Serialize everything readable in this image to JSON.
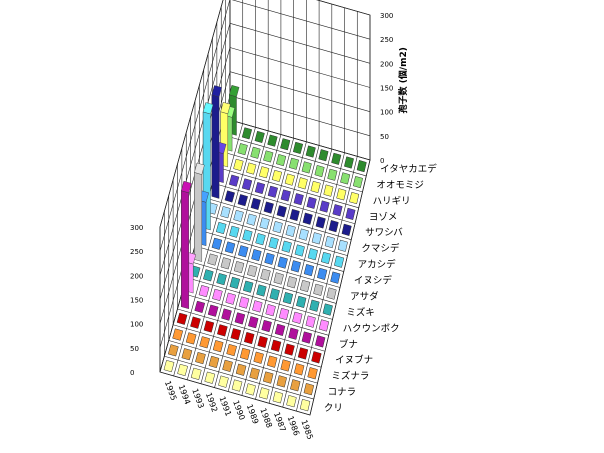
{
  "chart_data": {
    "type": "bar",
    "zlabel": "孢子数 (個/m2)",
    "zlim": [
      0,
      300
    ],
    "z_ticks": [
      "300",
      "250",
      "200",
      "150",
      "100",
      "50",
      "0"
    ],
    "z_ticks_left": [
      "300",
      "250",
      "200",
      "150",
      "100",
      "50",
      "0"
    ],
    "grid": true,
    "legend": "none",
    "years": [
      "1985",
      "1986",
      "1987",
      "1988",
      "1989",
      "1990",
      "1991",
      "1992",
      "1993",
      "1994",
      "1995"
    ],
    "year_tick_labels": [
      "1995",
      "1994",
      "1993",
      "1992",
      "1991",
      "1990",
      "1989",
      "1988",
      "1987",
      "1986",
      "1985"
    ],
    "species": [
      "イタヤカエデ",
      "オオモミジ",
      "ハリギリ",
      "ヨゾメ",
      "サワシバ",
      "クマシデ",
      "アカシデ",
      "イヌシデ",
      "アサダ",
      "ミズキ",
      "ハクウンボク",
      "ブナ",
      "イヌブナ",
      "ミズナラ",
      "コナラ",
      "クリ"
    ],
    "colors": [
      "#2e8b2e",
      "#88e070",
      "#ffff66",
      "#5a3cc8",
      "#1c1c8c",
      "#a8e0ff",
      "#58d8f0",
      "#3c8cf0",
      "#c8c8c8",
      "#30b0b0",
      "#ff8cff",
      "#b0109c",
      "#cc0000",
      "#ff9933",
      "#e8a040",
      "#ffffa0"
    ],
    "values": [
      [
        0,
        0,
        0,
        0,
        0,
        0,
        0,
        0,
        0,
        0,
        80
      ],
      [
        0,
        0,
        0,
        0,
        0,
        0,
        0,
        0,
        0,
        0,
        70
      ],
      [
        0,
        0,
        0,
        0,
        0,
        0,
        0,
        0,
        0,
        0,
        110
      ],
      [
        0,
        0,
        0,
        0,
        0,
        0,
        0,
        0,
        0,
        0,
        60
      ],
      [
        0,
        0,
        0,
        0,
        0,
        0,
        0,
        0,
        0,
        0,
        210
      ],
      [
        0,
        0,
        0,
        0,
        0,
        0,
        0,
        0,
        0,
        0,
        0
      ],
      [
        0,
        0,
        0,
        0,
        0,
        0,
        0,
        0,
        0,
        0,
        240
      ],
      [
        0,
        0,
        0,
        0,
        0,
        0,
        0,
        0,
        0,
        0,
        90
      ],
      [
        0,
        0,
        0,
        0,
        0,
        0,
        0,
        0,
        0,
        0,
        180
      ],
      [
        0,
        0,
        0,
        0,
        0,
        0,
        0,
        0,
        0,
        0,
        0
      ],
      [
        0,
        0,
        0,
        0,
        0,
        0,
        0,
        0,
        0,
        0,
        60
      ],
      [
        0,
        0,
        0,
        0,
        0,
        0,
        0,
        0,
        0,
        0,
        240
      ],
      [
        0,
        0,
        0,
        0,
        0,
        0,
        0,
        0,
        0,
        0,
        0
      ],
      [
        0,
        0,
        0,
        0,
        0,
        0,
        0,
        0,
        0,
        0,
        0
      ],
      [
        0,
        0,
        0,
        0,
        0,
        0,
        0,
        0,
        0,
        0,
        0
      ],
      [
        0,
        0,
        0,
        0,
        0,
        0,
        0,
        0,
        0,
        0,
        0
      ]
    ]
  }
}
